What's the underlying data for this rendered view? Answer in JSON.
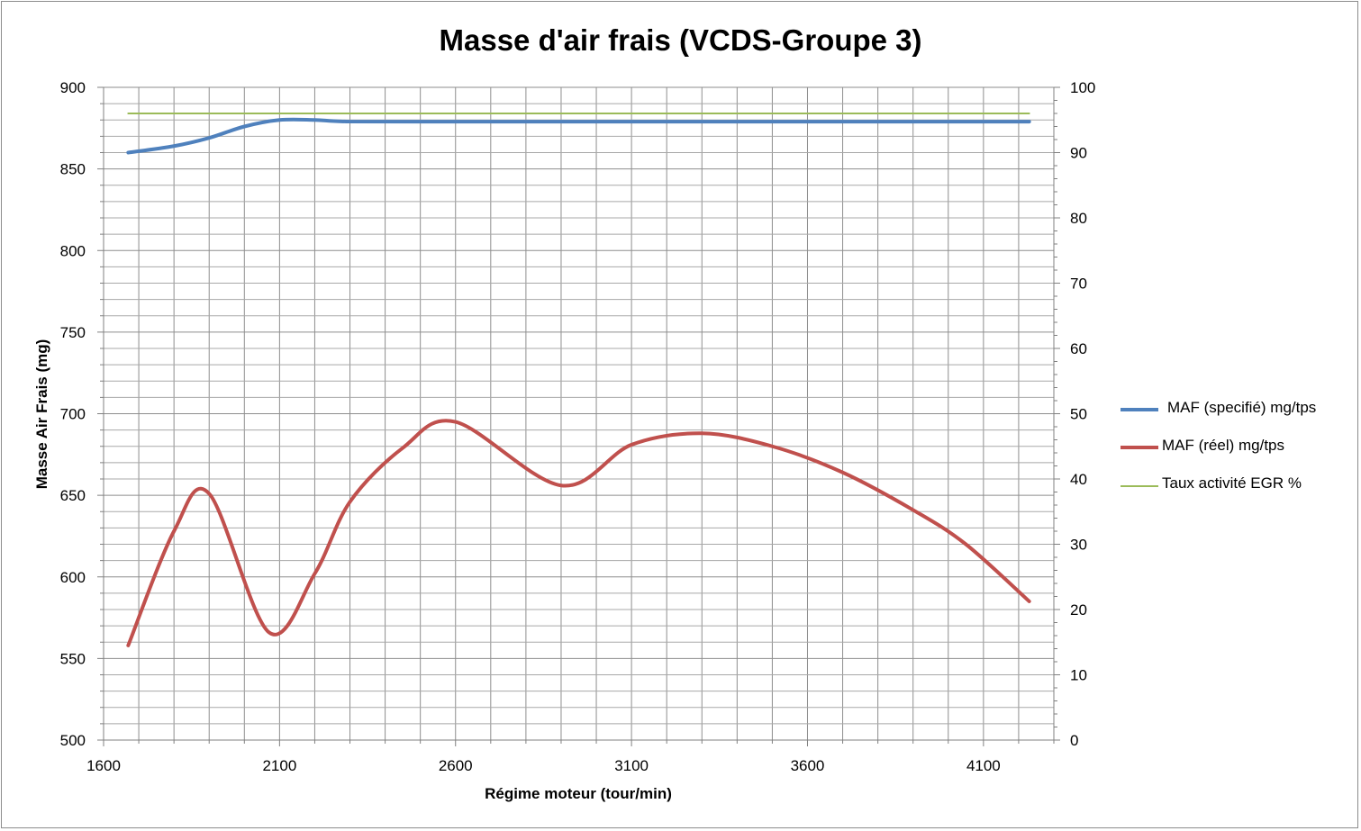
{
  "chart_data": {
    "type": "line",
    "title": "Masse d'air frais (VCDS-Groupe 3)",
    "xlabel": "Régime moteur (tour/min)",
    "ylabel": "Masse Air Frais (mg)",
    "y2label": "",
    "xlim": [
      1600,
      4300
    ],
    "ylim": [
      500,
      900
    ],
    "y2lim": [
      0,
      100
    ],
    "x_ticks": [
      1600,
      2100,
      2600,
      3100,
      3600,
      4100
    ],
    "y_ticks": [
      500,
      550,
      600,
      650,
      700,
      750,
      800,
      850,
      900
    ],
    "y2_ticks": [
      0,
      10,
      20,
      30,
      40,
      50,
      60,
      70,
      80,
      90,
      100
    ],
    "grid": true,
    "legend_position": "right",
    "series": [
      {
        "name": "MAF (specifié) mg/tps",
        "axis": "left",
        "color": "#4f81bd",
        "x": [
          1670,
          1800,
          1900,
          2000,
          2100,
          2200,
          2300,
          2600,
          2900,
          3100,
          3400,
          3600,
          3800,
          4000,
          4230
        ],
        "y": [
          860,
          864,
          869,
          876,
          880,
          880,
          879,
          879,
          879,
          879,
          879,
          879,
          879,
          879,
          879
        ]
      },
      {
        "name": "MAF (réel)  mg/tps",
        "axis": "left",
        "color": "#c0504d",
        "x": [
          1670,
          1800,
          1900,
          2070,
          2200,
          2300,
          2450,
          2600,
          2900,
          3100,
          3300,
          3500,
          3700,
          3900,
          4050,
          4230
        ],
        "y": [
          558,
          628,
          651,
          566,
          602,
          646,
          679,
          695,
          656,
          681,
          688,
          680,
          664,
          641,
          620,
          585
        ]
      },
      {
        "name": "Taux activité EGR  %",
        "axis": "right",
        "color": "#9bbb59",
        "x": [
          1670,
          4230
        ],
        "y": [
          96,
          96
        ]
      }
    ]
  }
}
